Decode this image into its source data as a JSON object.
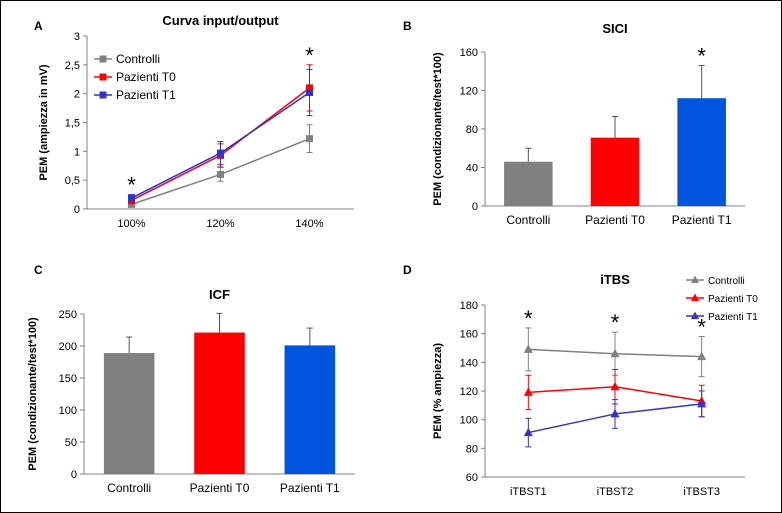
{
  "colors": {
    "controlli": "#808080",
    "t0": "#ff0000",
    "t1": "#3333cc",
    "t1_bar": "#0055e0",
    "axis": "#808080"
  },
  "chart_data": [
    {
      "panel": "A",
      "type": "line",
      "title": "Curva input/output",
      "xlabel": "",
      "ylabel": "PEM (ampiezza in mV)",
      "categories": [
        "100%",
        "120%",
        "140%"
      ],
      "ylim": [
        0,
        3
      ],
      "yticks": [
        "0",
        "0,5",
        "1",
        "1,5",
        "2",
        "2,5",
        "3"
      ],
      "legend_position": "top-left",
      "series": [
        {
          "name": "Controlli",
          "values": [
            0.08,
            0.6,
            1.22
          ],
          "errors": [
            0.04,
            0.12,
            0.24
          ]
        },
        {
          "name": "Pazienti T0",
          "values": [
            0.15,
            0.93,
            2.1
          ],
          "errors": [
            0.06,
            0.2,
            0.4
          ]
        },
        {
          "name": "Pazienti T1",
          "values": [
            0.19,
            0.97,
            2.02
          ],
          "errors": [
            0.06,
            0.2,
            0.4
          ]
        }
      ],
      "significance": [
        "*",
        "",
        "*"
      ]
    },
    {
      "panel": "B",
      "type": "bar",
      "title": "SICI",
      "xlabel": "",
      "ylabel": "PEM (condizionante/test*100)",
      "categories": [
        "Controlli",
        "Pazienti T0",
        "Pazienti T1"
      ],
      "values": [
        46,
        71,
        112
      ],
      "errors": [
        14,
        22,
        34
      ],
      "ylim": [
        0,
        160
      ],
      "yticks": [
        "0",
        "40",
        "80",
        "120",
        "160"
      ],
      "significance": [
        "",
        "",
        "*"
      ]
    },
    {
      "panel": "C",
      "type": "bar",
      "title": "ICF",
      "xlabel": "",
      "ylabel": "PEM (condizionante/test*100)",
      "categories": [
        "Controlli",
        "Pazienti T0",
        "Pazienti T1"
      ],
      "values": [
        189,
        221,
        201
      ],
      "errors": [
        25,
        30,
        27
      ],
      "ylim": [
        0,
        250
      ],
      "yticks": [
        "0",
        "50",
        "100",
        "150",
        "200",
        "250"
      ]
    },
    {
      "panel": "D",
      "type": "line",
      "title": "iTBS",
      "xlabel": "",
      "ylabel": "PEM (% ampiezza)",
      "categories": [
        "iTBST1",
        "iTBST2",
        "iTBST3"
      ],
      "ylim": [
        60,
        180
      ],
      "yticks": [
        "60",
        "80",
        "100",
        "120",
        "140",
        "160",
        "180"
      ],
      "legend_position": "top-right",
      "series": [
        {
          "name": "Controlli",
          "values": [
            149,
            146,
            144
          ],
          "errors": [
            15,
            15,
            14
          ]
        },
        {
          "name": "Pazienti T0",
          "values": [
            119,
            123,
            113
          ],
          "errors": [
            12,
            12,
            11
          ]
        },
        {
          "name": "Pazienti T1",
          "values": [
            91,
            104,
            111
          ],
          "errors": [
            10,
            10,
            9
          ]
        }
      ],
      "significance": [
        "*",
        "*",
        "*"
      ]
    }
  ]
}
